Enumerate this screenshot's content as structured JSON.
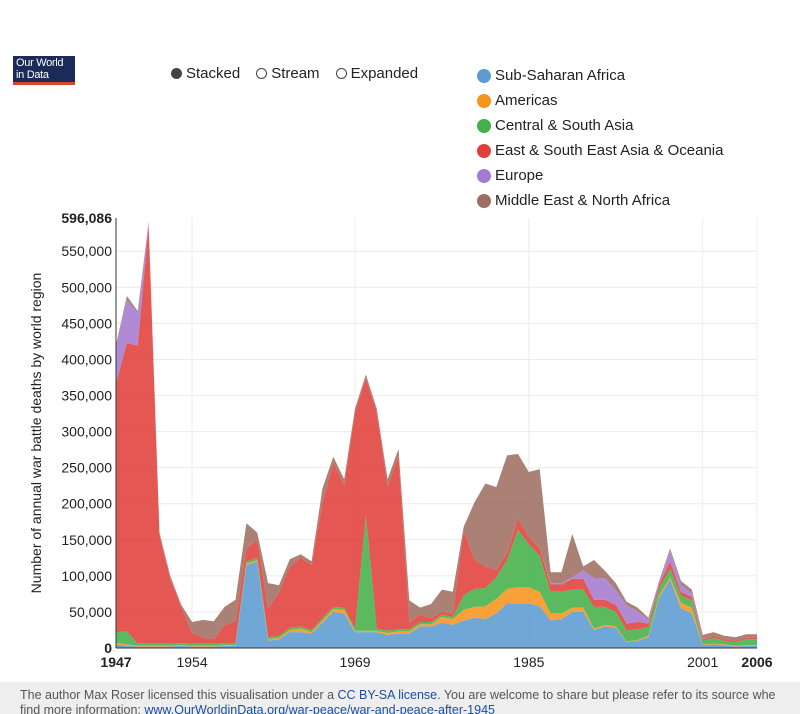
{
  "logo": {
    "line1": "Our World",
    "line2": "in Data"
  },
  "toggles": [
    {
      "label": "Stacked",
      "selected": true
    },
    {
      "label": "Stream",
      "selected": false
    },
    {
      "label": "Expanded",
      "selected": false
    }
  ],
  "legend": [
    {
      "name": "Sub-Saharan Africa",
      "color": "#5b9bd0"
    },
    {
      "name": "Americas",
      "color": "#f7941e"
    },
    {
      "name": "Central & South Asia",
      "color": "#44b049"
    },
    {
      "name": "East & South East Asia & Oceania",
      "color": "#e0403a"
    },
    {
      "name": "Europe",
      "color": "#a67ad0"
    },
    {
      "name": "Middle East & North Africa",
      "color": "#9e6f61"
    }
  ],
  "footer": {
    "text1": "The author Max Roser licensed this visualisation under a ",
    "license_link": "CC BY-SA license",
    "text2": ". You are welcome to share but please refer to its source whe",
    "text3": "find more information: ",
    "url": "www.OurWorldinData.org/war-peace/war-and-peace-after-1945"
  },
  "chart_data": {
    "type": "area",
    "stacked": true,
    "ylabel": "Number of annual war battle deaths by world region",
    "xlabel": "",
    "xlim": [
      1947,
      2006
    ],
    "ylim": [
      0,
      596086
    ],
    "y_ticks": [
      "0",
      "50,000",
      "100,000",
      "150,000",
      "200,000",
      "250,000",
      "300,000",
      "350,000",
      "400,000",
      "450,000",
      "500,000",
      "550,000"
    ],
    "y_max_label": "596,086",
    "x_ticks": [
      "1947",
      "1954",
      "1969",
      "1985",
      "2001",
      "2006"
    ],
    "x_bold_ticks": [
      "1947",
      "2006"
    ],
    "grid": true,
    "x": [
      1947,
      1948,
      1949,
      1950,
      1951,
      1952,
      1953,
      1954,
      1955,
      1956,
      1957,
      1958,
      1959,
      1960,
      1961,
      1962,
      1963,
      1964,
      1965,
      1966,
      1967,
      1968,
      1969,
      1970,
      1971,
      1972,
      1973,
      1974,
      1975,
      1976,
      1977,
      1978,
      1979,
      1980,
      1981,
      1982,
      1983,
      1984,
      1985,
      1986,
      1987,
      1988,
      1989,
      1990,
      1991,
      1992,
      1993,
      1994,
      1995,
      1996,
      1997,
      1998,
      1999,
      2000,
      2001,
      2002,
      2003,
      2004,
      2005,
      2006
    ],
    "series": [
      {
        "name": "Sub-Saharan Africa",
        "values": [
          5000,
          3000,
          2000,
          2000,
          2000,
          2000,
          3000,
          2000,
          2000,
          2000,
          3000,
          3000,
          115000,
          120000,
          10000,
          12000,
          22000,
          22000,
          20000,
          35000,
          50000,
          48000,
          22000,
          22000,
          22000,
          18000,
          20000,
          20000,
          30000,
          30000,
          35000,
          32000,
          38000,
          42000,
          40000,
          48000,
          62000,
          62000,
          62000,
          58000,
          38000,
          40000,
          50000,
          50000,
          25000,
          30000,
          28000,
          8000,
          10000,
          15000,
          70000,
          95000,
          55000,
          48000,
          4000,
          5000,
          4000,
          2000,
          3000,
          3000
        ]
      },
      {
        "name": "Americas",
        "values": [
          2000,
          2000,
          1000,
          1000,
          1000,
          1000,
          1000,
          1000,
          1000,
          1000,
          1000,
          1000,
          2000,
          2000,
          2000,
          2000,
          3000,
          5000,
          2000,
          3000,
          4000,
          5000,
          2000,
          2000,
          2000,
          3000,
          3000,
          3000,
          3000,
          3000,
          8000,
          8000,
          15000,
          15000,
          18000,
          20000,
          20000,
          22000,
          22000,
          20000,
          10000,
          8000,
          6000,
          6000,
          2000,
          2000,
          2000,
          1000,
          1000,
          2000,
          3000,
          3000,
          8000,
          8000,
          1000,
          1000,
          1000,
          1000,
          1000,
          1000
        ]
      },
      {
        "name": "Central & South Asia",
        "values": [
          15000,
          18000,
          3000,
          3000,
          3000,
          3000,
          3000,
          3000,
          3000,
          3000,
          3000,
          3000,
          3000,
          3000,
          3000,
          3000,
          3000,
          3000,
          3000,
          3000,
          3000,
          3000,
          3000,
          160000,
          3000,
          3000,
          3000,
          3000,
          3000,
          3000,
          3000,
          3000,
          20000,
          25000,
          25000,
          30000,
          40000,
          80000,
          60000,
          50000,
          30000,
          30000,
          25000,
          25000,
          30000,
          25000,
          20000,
          15000,
          15000,
          12000,
          10000,
          12000,
          10000,
          10000,
          5000,
          8000,
          5000,
          5000,
          8000,
          8000
        ]
      },
      {
        "name": "East & South East Asia & Oceania",
        "values": [
          345000,
          400000,
          413000,
          580000,
          150000,
          90000,
          50000,
          15000,
          8000,
          6000,
          25000,
          30000,
          18000,
          25000,
          40000,
          60000,
          85000,
          95000,
          90000,
          160000,
          200000,
          170000,
          300000,
          190000,
          300000,
          200000,
          240000,
          10000,
          10000,
          5000,
          5000,
          5000,
          90000,
          40000,
          30000,
          10000,
          10000,
          15000,
          10000,
          10000,
          10000,
          10000,
          15000,
          15000,
          10000,
          10000,
          10000,
          10000,
          10000,
          5000,
          5000,
          10000,
          5000,
          5000,
          2000,
          3000,
          2000,
          2000,
          2000,
          2000
        ]
      },
      {
        "name": "Europe",
        "values": [
          50000,
          60000,
          45000,
          2000,
          1000,
          1000,
          0,
          0,
          0,
          0,
          0,
          0,
          0,
          0,
          0,
          0,
          0,
          0,
          0,
          0,
          0,
          0,
          0,
          0,
          0,
          0,
          0,
          0,
          0,
          0,
          0,
          0,
          0,
          0,
          0,
          0,
          0,
          0,
          0,
          0,
          2000,
          2000,
          2000,
          12000,
          30000,
          30000,
          20000,
          25000,
          15000,
          5000,
          2000,
          15000,
          10000,
          5000,
          1000,
          0,
          0,
          0,
          0,
          0
        ]
      },
      {
        "name": "Middle East & North Africa",
        "values": [
          3000,
          5000,
          3000,
          3000,
          3000,
          3000,
          3000,
          15000,
          25000,
          25000,
          25000,
          30000,
          35000,
          10000,
          35000,
          10000,
          10000,
          5000,
          5000,
          20000,
          8000,
          8000,
          5000,
          5000,
          5000,
          10000,
          10000,
          30000,
          10000,
          20000,
          30000,
          30000,
          5000,
          80000,
          115000,
          115000,
          135000,
          90000,
          90000,
          110000,
          15000,
          15000,
          60000,
          5000,
          25000,
          10000,
          10000,
          5000,
          5000,
          3000,
          3000,
          3000,
          5000,
          5000,
          5000,
          5000,
          5000,
          5000,
          5000,
          5000
        ]
      }
    ]
  }
}
